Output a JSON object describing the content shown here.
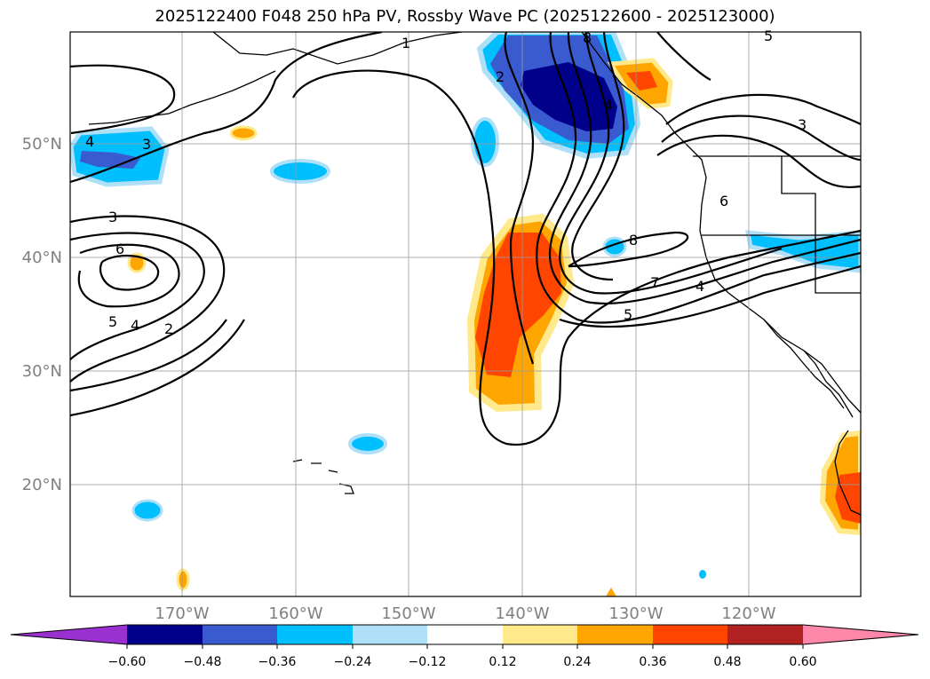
{
  "map": {
    "title": "2025122400 F048 250 hPa PV, Rossby Wave PC (2025122600 - 2025123000)",
    "latitude_labels": [
      "50°N",
      "40°N",
      "30°N",
      "20°N"
    ],
    "longitude_labels": [
      "170°W",
      "160°W",
      "150°W",
      "140°W",
      "130°W",
      "120°W"
    ],
    "contour_labels": [
      "1",
      "3",
      "4",
      "3",
      "6",
      "5",
      "4",
      "2",
      "8",
      "2",
      "4",
      "8",
      "7",
      "5",
      "6",
      "4",
      "3",
      "5"
    ]
  },
  "colorbar": {
    "tick_labels": [
      "−0.60",
      "−0.48",
      "−0.36",
      "−0.24",
      "−0.12",
      "0.12",
      "0.24",
      "0.36",
      "0.48",
      "0.60"
    ],
    "colors": [
      "#9b30d0",
      "#00008b",
      "#3a5bd0",
      "#00bfff",
      "#b0e0f8",
      "#ffffff",
      "#ffe98a",
      "#ffa500",
      "#ff4500",
      "#b22222",
      "#ff88aa"
    ]
  },
  "colors": {
    "deep_negative": "#00008b",
    "mid_negative": "#3a5bd0",
    "light_negative": "#00bfff",
    "pale_negative": "#b0e0f8",
    "pale_positive": "#ffe98a",
    "light_positive": "#ffa500",
    "mid_positive": "#ff4500"
  }
}
